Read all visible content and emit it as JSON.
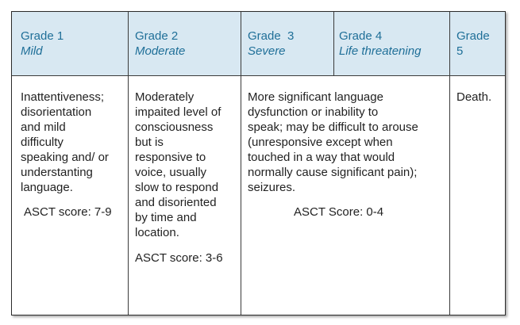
{
  "colors": {
    "header_bg": "#d8e8f2",
    "header_text": "#1f6f98",
    "border": "#3b3b3b"
  },
  "header": [
    {
      "grade": "Grade 1",
      "label": "Mild"
    },
    {
      "grade": "Grade 2",
      "label": "Moderate"
    },
    {
      "grade": "Grade  3",
      "label": "Severe"
    },
    {
      "grade": "Grade 4",
      "label": "Life threatening"
    },
    {
      "grade": "Grade",
      "grade_line2": "5"
    }
  ],
  "body": {
    "grade1": {
      "lines": [
        "Inattentiveness;",
        "disorientation",
        "and mild",
        "difficulty",
        "speaking and/ or",
        "understanting",
        "language."
      ],
      "score": "ASCT score: 7-9"
    },
    "grade2": {
      "lines": [
        "Moderately",
        "impaited level of",
        "consciousness",
        "but is",
        "responsive to",
        "voice, usually",
        "slow to respond",
        "and disoriented",
        "by time and",
        "location."
      ],
      "score": "ASCT score: 3-6"
    },
    "grade34": {
      "lines": [
        "More significant language",
        "dysfunction or inability to",
        "speak; may be difficult to arouse",
        "(unresponsive except when",
        "touched in a way that would",
        "normally cause significant pain);",
        "seizures."
      ],
      "score": "ASCT Score: 0-4"
    },
    "grade5": {
      "lines": [
        "Death."
      ]
    }
  }
}
